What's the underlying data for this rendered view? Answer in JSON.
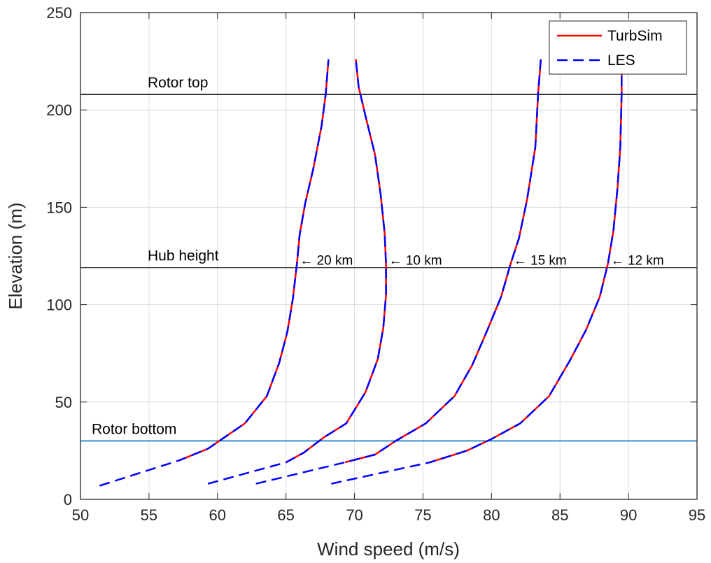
{
  "chart_data": {
    "type": "line",
    "xlabel": "Wind speed (m/s)",
    "ylabel": "Elevation (m)",
    "xlim": [
      50,
      95
    ],
    "ylim": [
      0,
      250
    ],
    "xticks": [
      50,
      55,
      60,
      65,
      70,
      75,
      80,
      85,
      90,
      95
    ],
    "yticks": [
      0,
      50,
      100,
      150,
      200,
      250
    ],
    "grid": true,
    "legend_position": "top-right",
    "legend": [
      {
        "name": "TurbSim",
        "color": "#ff0000",
        "style": "solid"
      },
      {
        "name": "LES",
        "color": "#0000ff",
        "style": "dashed"
      }
    ],
    "reference_lines": [
      {
        "label": "Rotor top",
        "y": 208,
        "color": "#000000"
      },
      {
        "label": "Hub height",
        "y": 119,
        "color": "#000000"
      },
      {
        "label": "Rotor bottom",
        "y": 30,
        "color": "#0072bd"
      }
    ],
    "profiles": [
      {
        "annotation": "← 20 km",
        "annotation_y": 123,
        "turbsim": [
          [
            57.2,
            20
          ],
          [
            59.3,
            26
          ],
          [
            62.0,
            39
          ],
          [
            63.6,
            53
          ],
          [
            64.5,
            70
          ],
          [
            65.1,
            86
          ],
          [
            65.5,
            103
          ],
          [
            65.8,
            121
          ],
          [
            66.0,
            136
          ],
          [
            66.4,
            152
          ],
          [
            67.0,
            170
          ],
          [
            67.6,
            192
          ],
          [
            67.9,
            208
          ],
          [
            68.1,
            226
          ]
        ],
        "les": [
          [
            51.4,
            7
          ],
          [
            57.2,
            20
          ],
          [
            59.3,
            26
          ],
          [
            62.0,
            39
          ],
          [
            63.6,
            53
          ],
          [
            64.5,
            70
          ],
          [
            65.1,
            86
          ],
          [
            65.5,
            103
          ],
          [
            65.8,
            121
          ],
          [
            66.0,
            136
          ],
          [
            66.4,
            152
          ],
          [
            67.0,
            170
          ],
          [
            67.6,
            192
          ],
          [
            67.9,
            208
          ],
          [
            68.1,
            226
          ]
        ]
      },
      {
        "annotation": "← 10 km",
        "annotation_y": 123,
        "turbsim": [
          [
            65.0,
            19
          ],
          [
            66.3,
            24
          ],
          [
            67.8,
            32
          ],
          [
            69.4,
            39
          ],
          [
            70.8,
            55
          ],
          [
            71.7,
            72
          ],
          [
            72.1,
            88
          ],
          [
            72.3,
            105
          ],
          [
            72.3,
            121
          ],
          [
            72.2,
            137
          ],
          [
            71.9,
            157
          ],
          [
            71.5,
            177
          ],
          [
            70.8,
            197
          ],
          [
            70.3,
            212
          ],
          [
            70.1,
            226
          ]
        ],
        "les": [
          [
            59.3,
            8
          ],
          [
            65.0,
            19
          ],
          [
            66.3,
            24
          ],
          [
            67.8,
            32
          ],
          [
            69.4,
            39
          ],
          [
            70.8,
            55
          ],
          [
            71.7,
            72
          ],
          [
            72.1,
            88
          ],
          [
            72.3,
            105
          ],
          [
            72.3,
            121
          ],
          [
            72.2,
            137
          ],
          [
            71.9,
            157
          ],
          [
            71.5,
            177
          ],
          [
            70.8,
            197
          ],
          [
            70.3,
            212
          ],
          [
            70.1,
            226
          ]
        ]
      },
      {
        "annotation": "← 15 km",
        "annotation_y": 123,
        "turbsim": [
          [
            69.3,
            19
          ],
          [
            71.5,
            23
          ],
          [
            73.0,
            30
          ],
          [
            75.2,
            39
          ],
          [
            77.3,
            53
          ],
          [
            78.6,
            69
          ],
          [
            79.7,
            87
          ],
          [
            80.7,
            104
          ],
          [
            81.4,
            121
          ],
          [
            82.0,
            134
          ],
          [
            82.6,
            154
          ],
          [
            83.2,
            181
          ],
          [
            83.4,
            208
          ],
          [
            83.6,
            226
          ]
        ],
        "les": [
          [
            62.8,
            8
          ],
          [
            69.3,
            19
          ],
          [
            71.5,
            23
          ],
          [
            73.0,
            30
          ],
          [
            75.2,
            39
          ],
          [
            77.3,
            53
          ],
          [
            78.6,
            69
          ],
          [
            79.7,
            87
          ],
          [
            80.7,
            104
          ],
          [
            81.4,
            121
          ],
          [
            82.0,
            134
          ],
          [
            82.6,
            154
          ],
          [
            83.2,
            181
          ],
          [
            83.4,
            208
          ],
          [
            83.6,
            226
          ]
        ]
      },
      {
        "annotation": "← 12 km",
        "annotation_y": 123,
        "turbsim": [
          [
            75.5,
            19
          ],
          [
            78.2,
            25
          ],
          [
            80.0,
            31
          ],
          [
            82.1,
            39
          ],
          [
            84.2,
            53
          ],
          [
            85.7,
            71
          ],
          [
            86.9,
            87
          ],
          [
            87.9,
            104
          ],
          [
            88.5,
            121
          ],
          [
            88.9,
            138
          ],
          [
            89.2,
            160
          ],
          [
            89.4,
            181
          ],
          [
            89.5,
            208
          ],
          [
            89.5,
            226
          ]
        ],
        "les": [
          [
            68.3,
            8
          ],
          [
            75.5,
            19
          ],
          [
            78.2,
            25
          ],
          [
            80.0,
            31
          ],
          [
            82.1,
            39
          ],
          [
            84.2,
            53
          ],
          [
            85.7,
            71
          ],
          [
            86.9,
            87
          ],
          [
            87.9,
            104
          ],
          [
            88.5,
            121
          ],
          [
            88.9,
            138
          ],
          [
            89.2,
            160
          ],
          [
            89.4,
            181
          ],
          [
            89.5,
            208
          ],
          [
            89.5,
            226
          ]
        ]
      }
    ]
  }
}
